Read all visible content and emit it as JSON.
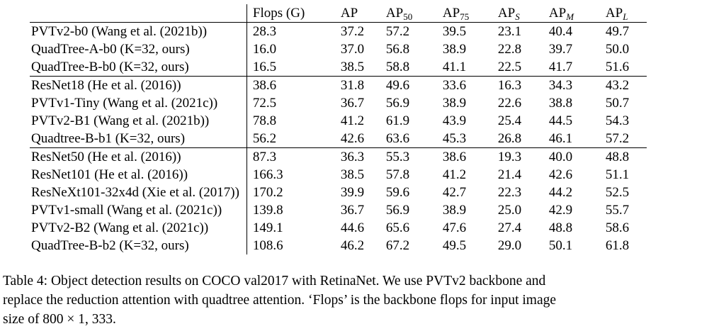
{
  "table": {
    "header": {
      "model": "",
      "flops": "Flops (G)",
      "ap": "AP",
      "ap50_base": "AP",
      "ap50_sub": "50",
      "ap75_base": "AP",
      "ap75_sub": "75",
      "aps_base": "AP",
      "aps_sub": "S",
      "apm_base": "AP",
      "apm_sub": "M",
      "apl_base": "AP",
      "apl_sub": "L"
    },
    "groups": [
      {
        "rows": [
          {
            "model": "PVTv2-b0 (Wang et al. (2021b))",
            "flops": "28.3",
            "ap": "37.2",
            "ap50": "57.2",
            "ap75": "39.5",
            "aps": "23.1",
            "apm": "40.4",
            "apl": "49.7"
          },
          {
            "model": "QuadTree-A-b0 (K=32, ours)",
            "flops": "16.0",
            "ap": "37.0",
            "ap50": "56.8",
            "ap75": "38.9",
            "aps": "22.8",
            "apm": "39.7",
            "apl": "50.0"
          },
          {
            "model": "QuadTree-B-b0 (K=32, ours)",
            "flops": "16.5",
            "ap": "38.5",
            "ap50": "58.8",
            "ap75": "41.1",
            "aps": "22.5",
            "apm": "41.7",
            "apl": "51.6"
          }
        ]
      },
      {
        "rows": [
          {
            "model": "ResNet18 (He et al. (2016))",
            "flops": "38.6",
            "ap": "31.8",
            "ap50": "49.6",
            "ap75": "33.6",
            "aps": "16.3",
            "apm": "34.3",
            "apl": "43.2"
          },
          {
            "model": "PVTv1-Tiny (Wang et al. (2021c))",
            "flops": "72.5",
            "ap": "36.7",
            "ap50": "56.9",
            "ap75": "38.9",
            "aps": "22.6",
            "apm": "38.8",
            "apl": "50.7"
          },
          {
            "model": "PVTv2-B1 (Wang et al. (2021b))",
            "flops": "78.8",
            "ap": "41.2",
            "ap50": "61.9",
            "ap75": "43.9",
            "aps": "25.4",
            "apm": "44.5",
            "apl": "54.3"
          },
          {
            "model": "Quadtree-B-b1 (K=32, ours)",
            "flops": "56.2",
            "ap": "42.6",
            "ap50": "63.6",
            "ap75": "45.3",
            "aps": "26.8",
            "apm": "46.1",
            "apl": "57.2"
          }
        ]
      },
      {
        "rows": [
          {
            "model": "ResNet50 (He et al. (2016))",
            "flops": "87.3",
            "ap": "36.3",
            "ap50": "55.3",
            "ap75": "38.6",
            "aps": "19.3",
            "apm": "40.0",
            "apl": "48.8"
          },
          {
            "model": "ResNet101 (He et al. (2016))",
            "flops": "166.3",
            "ap": "38.5",
            "ap50": "57.8",
            "ap75": "41.2",
            "aps": "21.4",
            "apm": "42.6",
            "apl": "51.1"
          },
          {
            "model": "ResNeXt101-32x4d (Xie et al. (2017))",
            "flops": "170.2",
            "ap": "39.9",
            "ap50": "59.6",
            "ap75": "42.7",
            "aps": "22.3",
            "apm": "44.2",
            "apl": "52.5"
          },
          {
            "model": "PVTv1-small (Wang et al. (2021c))",
            "flops": "139.8",
            "ap": "36.7",
            "ap50": "56.9",
            "ap75": "38.9",
            "aps": "25.0",
            "apm": "42.9",
            "apl": "55.7"
          },
          {
            "model": "PVTv2-B2 (Wang et al. (2021c))",
            "flops": "149.1",
            "ap": "44.6",
            "ap50": "65.6",
            "ap75": "47.6",
            "aps": "27.4",
            "apm": "48.8",
            "apl": "58.6"
          },
          {
            "model": "QuadTree-B-b2 (K=32, ours)",
            "flops": "108.6",
            "ap": "46.2",
            "ap50": "67.2",
            "ap75": "49.5",
            "aps": "29.0",
            "apm": "50.1",
            "apl": "61.8"
          }
        ]
      }
    ]
  },
  "caption": {
    "line1": "Table 4: Object detection results on COCO val2017 with RetinaNet. We use PVTv2 backbone and",
    "line2": "replace the reduction attention with quadtree attention. ‘Flops’ is the backbone flops for input image",
    "line3": "size of 800 × 1, 333."
  }
}
